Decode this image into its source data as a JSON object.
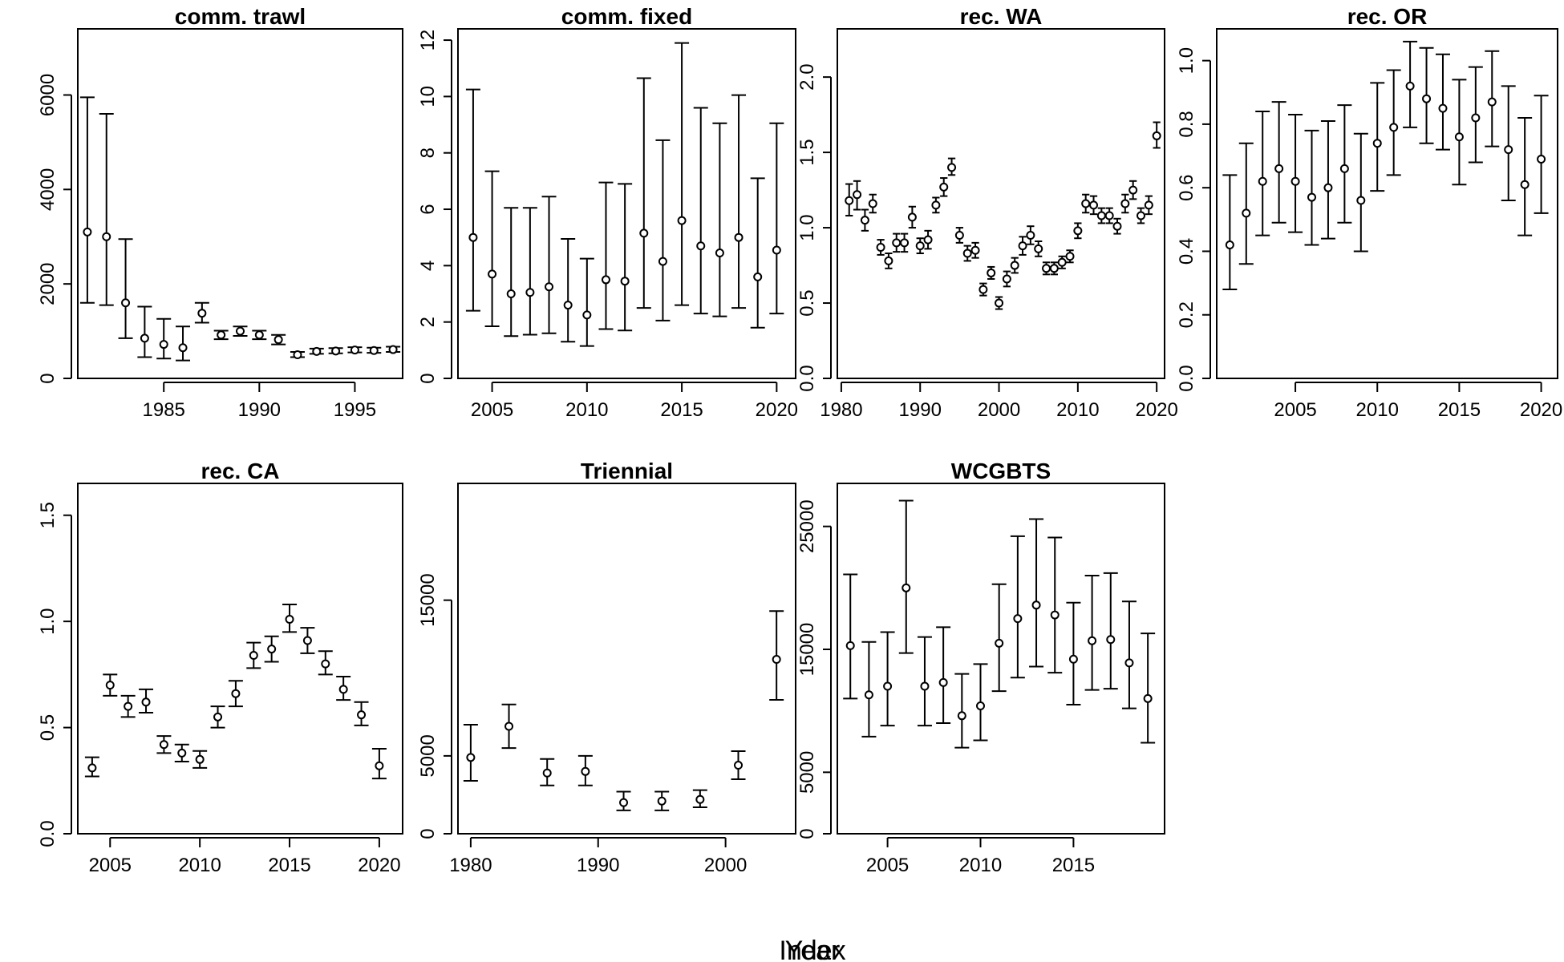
{
  "figure": {
    "outer_xlabel": "Year",
    "outer_overlay_label": "Index"
  },
  "chart_data": [
    {
      "type": "scatter",
      "title": "comm. trawl",
      "xlim": [
        1980.5,
        1997.5
      ],
      "ylim": [
        0,
        7400
      ],
      "xticks": [
        1985,
        1990,
        1995
      ],
      "yticks": [
        0,
        2000,
        4000,
        6000
      ],
      "x": [
        1981,
        1982,
        1983,
        1984,
        1985,
        1986,
        1987,
        1988,
        1989,
        1990,
        1991,
        1992,
        1993,
        1994,
        1995,
        1996,
        1997
      ],
      "values": [
        3100,
        3000,
        1600,
        850,
        720,
        650,
        1380,
        920,
        1000,
        920,
        820,
        500,
        570,
        580,
        600,
        590,
        610
      ],
      "lower": [
        1600,
        1550,
        850,
        450,
        420,
        380,
        1180,
        830,
        900,
        830,
        720,
        450,
        520,
        530,
        550,
        540,
        560
      ],
      "upper": [
        5950,
        5600,
        2950,
        1520,
        1260,
        1100,
        1600,
        1010,
        1100,
        1010,
        920,
        560,
        630,
        640,
        660,
        650,
        670
      ]
    },
    {
      "type": "scatter",
      "title": "comm. fixed",
      "xlim": [
        2003.2,
        2021
      ],
      "ylim": [
        0,
        12.4
      ],
      "xticks": [
        2005,
        2010,
        2015,
        2020
      ],
      "yticks": [
        0,
        2,
        4,
        6,
        8,
        10,
        12
      ],
      "x": [
        2004,
        2005,
        2006,
        2007,
        2008,
        2009,
        2010,
        2011,
        2012,
        2013,
        2014,
        2015,
        2016,
        2017,
        2018,
        2019,
        2020
      ],
      "values": [
        5.0,
        3.7,
        3.0,
        3.05,
        3.25,
        2.6,
        2.25,
        3.5,
        3.45,
        5.15,
        4.15,
        5.6,
        4.7,
        4.45,
        5.0,
        3.6,
        4.55
      ],
      "lower": [
        2.4,
        1.85,
        1.5,
        1.55,
        1.6,
        1.3,
        1.15,
        1.75,
        1.7,
        2.5,
        2.05,
        2.6,
        2.3,
        2.2,
        2.5,
        1.8,
        2.3
      ],
      "upper": [
        10.25,
        7.35,
        6.05,
        6.05,
        6.45,
        4.95,
        4.25,
        6.95,
        6.9,
        10.65,
        8.45,
        11.9,
        9.6,
        9.05,
        10.05,
        7.1,
        9.05
      ]
    },
    {
      "type": "scatter",
      "title": "rec. WA",
      "xlim": [
        1979.5,
        2021
      ],
      "ylim": [
        0,
        2.32
      ],
      "xticks": [
        1980,
        1990,
        2000,
        2010,
        2020
      ],
      "yticks": [
        0.0,
        0.5,
        1.0,
        1.5,
        2.0
      ],
      "x": [
        1981,
        1982,
        1983,
        1984,
        1985,
        1986,
        1987,
        1988,
        1989,
        1990,
        1991,
        1992,
        1993,
        1994,
        1995,
        1996,
        1997,
        1998,
        1999,
        2000,
        2001,
        2002,
        2003,
        2004,
        2005,
        2006,
        2007,
        2008,
        2009,
        2010,
        2011,
        2012,
        2013,
        2014,
        2015,
        2016,
        2017,
        2018,
        2019,
        2020
      ],
      "values": [
        1.18,
        1.22,
        1.05,
        1.16,
        0.87,
        0.78,
        0.9,
        0.9,
        1.07,
        0.88,
        0.92,
        1.15,
        1.27,
        1.4,
        0.95,
        0.83,
        0.85,
        0.59,
        0.7,
        0.5,
        0.66,
        0.75,
        0.88,
        0.95,
        0.86,
        0.73,
        0.73,
        0.77,
        0.81,
        0.98,
        1.16,
        1.15,
        1.08,
        1.08,
        1.01,
        1.16,
        1.25,
        1.08,
        1.15,
        1.61
      ],
      "lower": [
        1.08,
        1.12,
        0.98,
        1.1,
        0.82,
        0.73,
        0.84,
        0.84,
        1.0,
        0.83,
        0.86,
        1.1,
        1.21,
        1.35,
        0.9,
        0.78,
        0.8,
        0.55,
        0.66,
        0.46,
        0.61,
        0.7,
        0.82,
        0.89,
        0.81,
        0.69,
        0.69,
        0.73,
        0.77,
        0.93,
        1.1,
        1.09,
        1.03,
        1.03,
        0.96,
        1.1,
        1.19,
        1.03,
        1.09,
        1.53
      ],
      "upper": [
        1.29,
        1.31,
        1.12,
        1.22,
        0.92,
        0.83,
        0.96,
        0.96,
        1.14,
        0.93,
        0.98,
        1.2,
        1.33,
        1.46,
        1.0,
        0.88,
        0.9,
        0.63,
        0.74,
        0.54,
        0.71,
        0.8,
        0.94,
        1.01,
        0.91,
        0.77,
        0.77,
        0.81,
        0.85,
        1.03,
        1.22,
        1.21,
        1.13,
        1.13,
        1.06,
        1.22,
        1.31,
        1.13,
        1.21,
        1.7
      ]
    },
    {
      "type": "scatter",
      "title": "rec. OR",
      "xlim": [
        2000.2,
        2021
      ],
      "ylim": [
        0,
        1.1
      ],
      "xticks": [
        2005,
        2010,
        2015,
        2020
      ],
      "yticks": [
        0.0,
        0.2,
        0.4,
        0.6,
        0.8,
        1.0
      ],
      "x": [
        2001,
        2002,
        2003,
        2004,
        2005,
        2006,
        2007,
        2008,
        2009,
        2010,
        2011,
        2012,
        2013,
        2014,
        2015,
        2016,
        2017,
        2018,
        2019,
        2020
      ],
      "values": [
        0.42,
        0.52,
        0.62,
        0.66,
        0.62,
        0.57,
        0.6,
        0.66,
        0.56,
        0.74,
        0.79,
        0.92,
        0.88,
        0.85,
        0.76,
        0.82,
        0.87,
        0.72,
        0.61,
        0.69
      ],
      "lower": [
        0.28,
        0.36,
        0.45,
        0.49,
        0.46,
        0.42,
        0.44,
        0.49,
        0.4,
        0.59,
        0.64,
        0.79,
        0.74,
        0.72,
        0.61,
        0.68,
        0.73,
        0.56,
        0.45,
        0.52
      ],
      "upper": [
        0.64,
        0.74,
        0.84,
        0.87,
        0.83,
        0.78,
        0.81,
        0.86,
        0.77,
        0.93,
        0.97,
        1.06,
        1.04,
        1.02,
        0.94,
        0.98,
        1.03,
        0.92,
        0.82,
        0.89
      ]
    },
    {
      "type": "scatter",
      "title": "rec. CA",
      "xlim": [
        2003.2,
        2021.3
      ],
      "ylim": [
        0,
        1.65
      ],
      "xticks": [
        2005,
        2010,
        2015,
        2020
      ],
      "yticks": [
        0.0,
        0.5,
        1.0,
        1.5
      ],
      "x": [
        2004,
        2005,
        2006,
        2007,
        2008,
        2009,
        2010,
        2011,
        2012,
        2013,
        2014,
        2015,
        2016,
        2017,
        2018,
        2019,
        2020
      ],
      "values": [
        0.31,
        0.7,
        0.6,
        0.62,
        0.42,
        0.38,
        0.35,
        0.55,
        0.66,
        0.84,
        0.87,
        1.01,
        0.91,
        0.8,
        0.68,
        0.56,
        0.32
      ],
      "lower": [
        0.27,
        0.65,
        0.55,
        0.57,
        0.38,
        0.34,
        0.31,
        0.5,
        0.6,
        0.78,
        0.81,
        0.95,
        0.85,
        0.75,
        0.63,
        0.51,
        0.26
      ],
      "upper": [
        0.36,
        0.75,
        0.65,
        0.68,
        0.46,
        0.42,
        0.39,
        0.6,
        0.72,
        0.9,
        0.93,
        1.08,
        0.97,
        0.86,
        0.74,
        0.62,
        0.4
      ]
    },
    {
      "type": "scatter",
      "title": "Triennial",
      "xlim": [
        1979,
        2005.5
      ],
      "ylim": [
        0,
        22500
      ],
      "xticks": [
        1980,
        1990,
        2000
      ],
      "yticks": [
        0,
        5000,
        15000
      ],
      "x": [
        1980,
        1983,
        1986,
        1989,
        1992,
        1995,
        1998,
        2001,
        2004
      ],
      "values": [
        4900,
        6900,
        3900,
        4000,
        2000,
        2100,
        2200,
        4400,
        11200
      ],
      "lower": [
        3400,
        5500,
        3100,
        3100,
        1500,
        1500,
        1700,
        3500,
        8600
      ],
      "upper": [
        7000,
        8300,
        4800,
        5000,
        2700,
        2700,
        2800,
        5300,
        14300
      ]
    },
    {
      "type": "scatter",
      "title": "WCGBTS",
      "xlim": [
        2002.3,
        2019.9
      ],
      "ylim": [
        0,
        28500
      ],
      "xticks": [
        2005,
        2010,
        2015
      ],
      "yticks": [
        0,
        5000,
        15000,
        25000
      ],
      "x": [
        2003,
        2004,
        2005,
        2006,
        2007,
        2008,
        2009,
        2010,
        2011,
        2012,
        2013,
        2014,
        2015,
        2016,
        2017,
        2018,
        2019
      ],
      "values": [
        15300,
        11300,
        12000,
        20000,
        12000,
        12300,
        9600,
        10400,
        15500,
        17500,
        18600,
        17800,
        14200,
        15700,
        15800,
        13900,
        11000
      ],
      "lower": [
        11000,
        7900,
        8800,
        14700,
        8800,
        9000,
        7000,
        7600,
        11600,
        12700,
        13600,
        13100,
        10500,
        11700,
        11800,
        10200,
        7400
      ],
      "upper": [
        21100,
        15600,
        16400,
        27100,
        16000,
        16800,
        13000,
        13800,
        20300,
        24200,
        25600,
        24100,
        18800,
        21000,
        21200,
        18900,
        16300
      ]
    }
  ]
}
